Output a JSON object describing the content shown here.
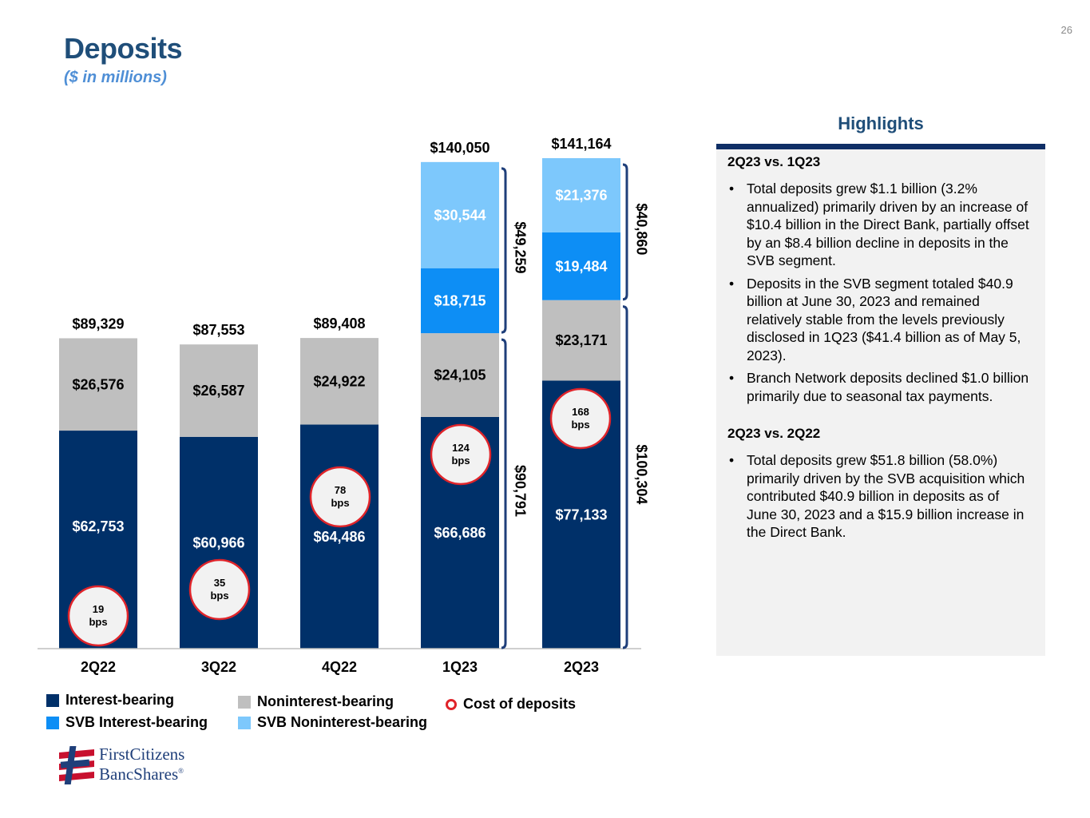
{
  "page_number": "26",
  "title": "Deposits",
  "subtitle": "($ in millions)",
  "colors": {
    "interest_bearing": "#003069",
    "noninterest_bearing": "#bfbfbf",
    "svb_interest_bearing": "#0d8ef5",
    "svb_noninterest_bearing": "#7dc8fc",
    "cost_circle_border": "#e0242a",
    "cost_circle_fill": "#f2f2f2",
    "brace": "#1f3f7a"
  },
  "chart_data": {
    "type": "bar",
    "stacked": true,
    "categories": [
      "2Q22",
      "3Q22",
      "4Q22",
      "1Q23",
      "2Q23"
    ],
    "series": [
      {
        "name": "Interest-bearing",
        "values": [
          62753,
          60966,
          64486,
          66686,
          77133
        ],
        "labels": [
          "$62,753",
          "$60,966",
          "$64,486",
          "$66,686",
          "$77,133"
        ]
      },
      {
        "name": "Noninterest-bearing",
        "values": [
          26576,
          26587,
          24922,
          24105,
          23171
        ],
        "labels": [
          "$26,576",
          "$26,587",
          "$24,922",
          "$24,105",
          "$23,171"
        ]
      },
      {
        "name": "SVB Interest-bearing",
        "values": [
          0,
          0,
          0,
          18715,
          19484
        ],
        "labels": [
          "",
          "",
          "",
          "$18,715",
          "$19,484"
        ]
      },
      {
        "name": "SVB Noninterest-bearing",
        "values": [
          0,
          0,
          0,
          30544,
          21376
        ],
        "labels": [
          "",
          "",
          "",
          "$30,544",
          "$21,376"
        ]
      }
    ],
    "totals": [
      89329,
      87553,
      89408,
      140050,
      141164
    ],
    "total_labels": [
      "$89,329",
      "$87,553",
      "$89,408",
      "$140,050",
      "$141,164"
    ],
    "cost_of_deposits": [
      {
        "value": "19",
        "unit": "bps"
      },
      {
        "value": "35",
        "unit": "bps"
      },
      {
        "value": "78",
        "unit": "bps"
      },
      {
        "value": "124",
        "unit": "bps"
      },
      {
        "value": "168",
        "unit": "bps"
      }
    ],
    "braces": [
      {
        "category": "1Q23",
        "group": "svb",
        "value": 49259,
        "label": "$49,259"
      },
      {
        "category": "1Q23",
        "group": "legacy",
        "value": 90791,
        "label": "$90,791"
      },
      {
        "category": "2Q23",
        "group": "svb",
        "value": 40860,
        "label": "$40,860"
      },
      {
        "category": "2Q23",
        "group": "legacy",
        "value": 100304,
        "label": "$100,304"
      }
    ],
    "ylim": [
      0,
      141164
    ]
  },
  "legend": {
    "interest_bearing": "Interest-bearing",
    "noninterest_bearing": "Noninterest-bearing",
    "cost_of_deposits": "Cost of deposits",
    "svb_interest_bearing": "SVB Interest-bearing",
    "svb_noninterest_bearing": "SVB Noninterest-bearing"
  },
  "highlights": {
    "heading": "Highlights",
    "sections": [
      {
        "title": "2Q23 vs. 1Q23",
        "bullets": [
          "Total deposits grew $1.1 billion (3.2% annualized) primarily driven by an increase of $10.4 billion in the Direct Bank, partially offset by an $8.4 billion decline in deposits in the SVB segment.",
          "Deposits in the SVB segment totaled $40.9 billion at June 30, 2023 and remained relatively stable from the levels previously disclosed in 1Q23 ($41.4 billion as of May 5, 2023).",
          "Branch Network deposits declined $1.0 billion primarily due to seasonal tax payments."
        ]
      },
      {
        "title": "2Q23 vs. 2Q22",
        "bullets": [
          "Total deposits grew $51.8 billion (58.0%) primarily driven by the SVB acquisition which contributed $40.9 billion in deposits as of June 30, 2023 and a $15.9 billion increase in the Direct Bank."
        ]
      }
    ]
  },
  "logo": {
    "line1": "FirstCitizens",
    "line2": "BancShares",
    "mark": "®"
  }
}
